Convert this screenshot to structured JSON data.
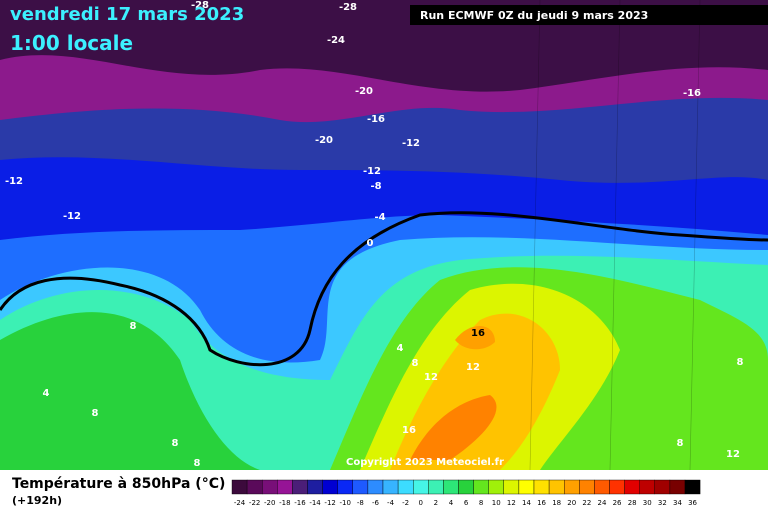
{
  "header": {
    "date": "vendredi 17 mars 2023",
    "time": "1:00 locale",
    "run": "Run ECMWF 0Z du jeudi 9 mars 2023"
  },
  "contour_labels": [
    -28,
    -28,
    -24,
    -20,
    -16,
    -16,
    -20,
    -12,
    -12,
    -8,
    -12,
    -12,
    -4,
    0,
    8,
    4,
    8,
    8,
    8,
    4,
    8,
    12,
    12,
    16,
    16,
    8,
    8,
    12
  ],
  "copyright": "Copyright 2023 Meteociel.fr",
  "legend": {
    "title": "Température à 850hPa (°C)",
    "lead": "(+192h)",
    "scale": [
      {
        "value": -24,
        "color": "#3c0a3c"
      },
      {
        "value": -22,
        "color": "#5a0a5a"
      },
      {
        "value": -20,
        "color": "#780f78"
      },
      {
        "value": -18,
        "color": "#961496"
      },
      {
        "value": -16,
        "color": "#4b1e78"
      },
      {
        "value": -14,
        "color": "#1e1ea0"
      },
      {
        "value": -12,
        "color": "#0000d2"
      },
      {
        "value": -10,
        "color": "#0a28f5"
      },
      {
        "value": -8,
        "color": "#1e5aff"
      },
      {
        "value": -6,
        "color": "#2d8cff"
      },
      {
        "value": -4,
        "color": "#37b4ff"
      },
      {
        "value": -2,
        "color": "#3cdcff"
      },
      {
        "value": 0,
        "color": "#46f5e6"
      },
      {
        "value": 2,
        "color": "#3cf0b4"
      },
      {
        "value": 4,
        "color": "#2de678"
      },
      {
        "value": 6,
        "color": "#28d23c"
      },
      {
        "value": 8,
        "color": "#64e61e"
      },
      {
        "value": 10,
        "color": "#a0f00a"
      },
      {
        "value": 12,
        "color": "#dcf500"
      },
      {
        "value": 14,
        "color": "#ffff00"
      },
      {
        "value": 16,
        "color": "#ffe100"
      },
      {
        "value": 18,
        "color": "#ffc300"
      },
      {
        "value": 20,
        "color": "#ffa000"
      },
      {
        "value": 22,
        "color": "#ff8200"
      },
      {
        "value": 24,
        "color": "#ff5a00"
      },
      {
        "value": 26,
        "color": "#ff3200"
      },
      {
        "value": 28,
        "color": "#e10000"
      },
      {
        "value": 30,
        "color": "#be0000"
      },
      {
        "value": 32,
        "color": "#a00000"
      },
      {
        "value": 34,
        "color": "#780000"
      },
      {
        "value": 36,
        "color": "#000000"
      }
    ]
  }
}
